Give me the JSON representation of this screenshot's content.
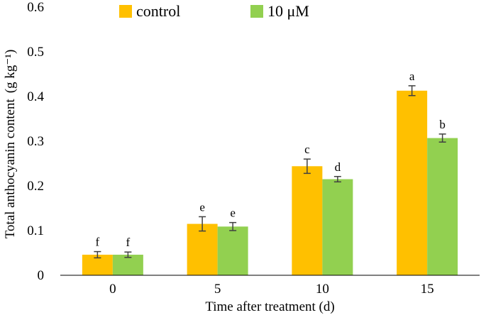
{
  "chart_data": {
    "type": "bar",
    "title": "",
    "xlabel": "Time after treatment (d)",
    "ylabel": "Total anthocyanin content",
    "ylabel_unit": "(g kg⁻¹)",
    "ylim": [
      0,
      0.6
    ],
    "yticks": [
      0,
      0.1,
      0.2,
      0.3,
      0.4,
      0.5,
      0.6
    ],
    "ytick_labels": [
      "0",
      "0.1",
      "0.2",
      "0.3",
      "0.4",
      "0.5",
      "0.6"
    ],
    "categories": [
      "0",
      "5",
      "10",
      "15"
    ],
    "series": [
      {
        "name": "control",
        "color": "#FFC000",
        "values": [
          0.046,
          0.115,
          0.244,
          0.413
        ],
        "errors": [
          0.007,
          0.016,
          0.016,
          0.011
        ],
        "letters": [
          "f",
          "e",
          "c",
          "a"
        ]
      },
      {
        "name": "10 μM",
        "color": "#92D050",
        "values": [
          0.046,
          0.109,
          0.215,
          0.307
        ],
        "errors": [
          0.006,
          0.009,
          0.006,
          0.009
        ],
        "letters": [
          "f",
          "e",
          "d",
          "b"
        ]
      }
    ],
    "legend_position": "top",
    "grid": false
  }
}
